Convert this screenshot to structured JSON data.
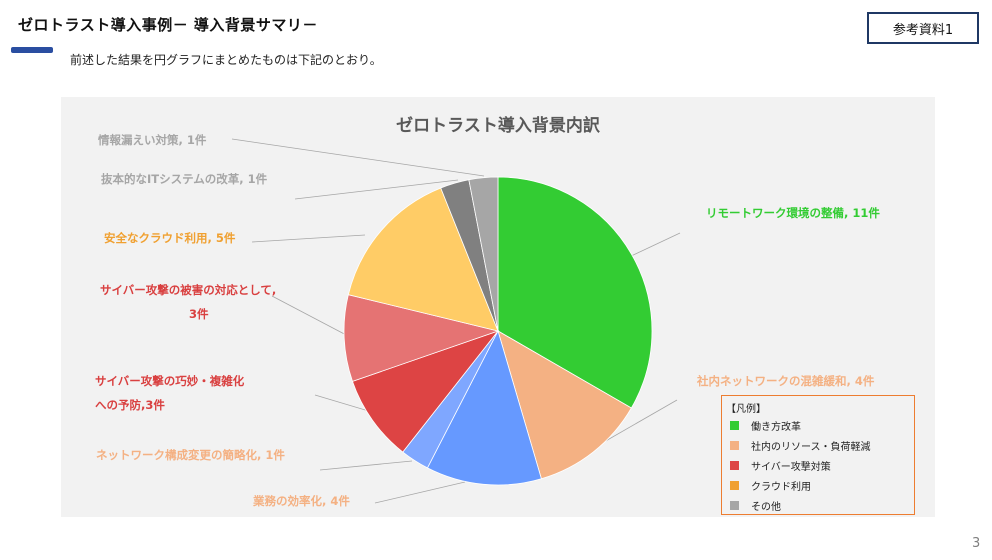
{
  "header": {
    "title": "ゼロトラスト導入事例－ 導入背景サマリ－",
    "subtitle": "前述した結果を円グラフにまとめたものは下記のとおり。",
    "ref_label": "参考資料1"
  },
  "page_number": "3",
  "chart_data": {
    "type": "pie",
    "title": "ゼロトラスト導入背景内訳",
    "start_angle_deg": 0,
    "direction": "clockwise",
    "slices": [
      {
        "label": "リモートワーク環境の整備, 11件",
        "value": 11,
        "color": "#33cc33"
      },
      {
        "label": "社内ネットワークの混雑緩和, 4件",
        "value": 4,
        "color": "#f4b183"
      },
      {
        "label": "業務の効率化, 4件",
        "value": 4,
        "color": "#6699ff"
      },
      {
        "label": "ネットワーク構成変更の簡略化, 1件",
        "value": 1,
        "color": "#7fa7ff"
      },
      {
        "label": "サイバー攻撃の巧妙・複雑化への予防,3件",
        "value": 3,
        "color": "#dd4444"
      },
      {
        "label": "サイバー攻撃の被害の対応として,3件",
        "value": 3,
        "color": "#e57373"
      },
      {
        "label": "安全なクラウド利用, 5件",
        "value": 5,
        "color": "#ffcc66"
      },
      {
        "label": "抜本的なITシステムの改革, 1件",
        "value": 1,
        "color": "#808080"
      },
      {
        "label": "情報漏えい対策, 1件",
        "value": 1,
        "color": "#a6a6a6"
      }
    ]
  },
  "labels": {
    "remote": "リモートワーク環境の整備, 11件",
    "network": "社内ネットワークの混雑緩和, 4件",
    "efficiency": "業務の効率化, 4件",
    "simplify": "ネットワーク構成変更の簡略化, 1件",
    "prevent_line1": "サイバー攻撃の巧妙・複雑化",
    "prevent_line2": "への予防,3件",
    "damage_line1": "サイバー攻撃の被害の対応として,",
    "damage_line2": "3件",
    "cloud": "安全なクラウド利用, 5件",
    "it_reform": "抜本的なITシステムの改革, 1件",
    "leak": "情報漏えい対策, 1件"
  },
  "legend": {
    "heading": "【凡例】",
    "items": [
      {
        "label": "働き方改革",
        "color": "#33cc33"
      },
      {
        "label": "社内のリソース・負荷軽減",
        "color": "#f4b183"
      },
      {
        "label": "サイバー攻撃対策",
        "color": "#dd4444"
      },
      {
        "label": "クラウド利用",
        "color": "#f0a030"
      },
      {
        "label": "その他",
        "color": "#a6a6a6"
      }
    ]
  }
}
